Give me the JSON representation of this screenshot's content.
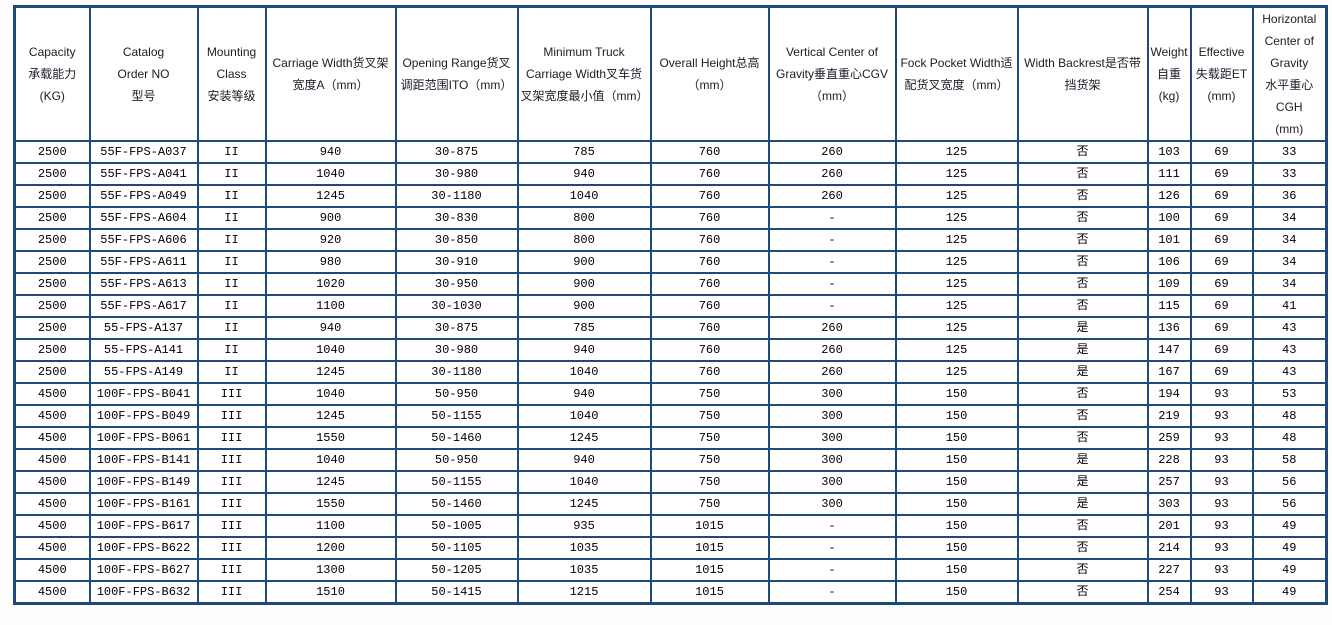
{
  "colors": {
    "grid_border": "#1F497D",
    "header_text": "#1c1c28",
    "cell_text": "#000000",
    "background": "#ffffff"
  },
  "table": {
    "headers": [
      "Capacity\n承载能力\n(KG)",
      "Catalog\nOrder NO\n型号",
      "Mounting\nClass\n安装等级",
      "Carriage Width货叉架宽度A（mm）",
      "Opening Range货叉调距范围ITO（mm）",
      "Minimum Truck Carriage Width叉车货叉架宽度最小值（mm）",
      "Overall Height总高\n（mm）",
      "Vertical Center of\nGravity垂直重心CGV\n（mm）",
      "Fock Pocket Width适配货叉宽度（mm）",
      "Width Backrest是否带挡货架",
      "Weight\n自重\n(kg)",
      "Effective\n失载距ET\n(mm)",
      "Horizontal\nCenter of\nGravity\n水平重心CGH\n(mm)"
    ],
    "rows": [
      [
        "2500",
        "55F-FPS-A037",
        "II",
        "940",
        "30-875",
        "785",
        "760",
        "260",
        "125",
        "否",
        "103",
        "69",
        "33"
      ],
      [
        "2500",
        "55F-FPS-A041",
        "II",
        "1040",
        "30-980",
        "940",
        "760",
        "260",
        "125",
        "否",
        "111",
        "69",
        "33"
      ],
      [
        "2500",
        "55F-FPS-A049",
        "II",
        "1245",
        "30-1180",
        "1040",
        "760",
        "260",
        "125",
        "否",
        "126",
        "69",
        "36"
      ],
      [
        "2500",
        "55F-FPS-A604",
        "II",
        "900",
        "30-830",
        "800",
        "760",
        "-",
        "125",
        "否",
        "100",
        "69",
        "34"
      ],
      [
        "2500",
        "55F-FPS-A606",
        "II",
        "920",
        "30-850",
        "800",
        "760",
        "-",
        "125",
        "否",
        "101",
        "69",
        "34"
      ],
      [
        "2500",
        "55F-FPS-A611",
        "II",
        "980",
        "30-910",
        "900",
        "760",
        "-",
        "125",
        "否",
        "106",
        "69",
        "34"
      ],
      [
        "2500",
        "55F-FPS-A613",
        "II",
        "1020",
        "30-950",
        "900",
        "760",
        "-",
        "125",
        "否",
        "109",
        "69",
        "34"
      ],
      [
        "2500",
        "55F-FPS-A617",
        "II",
        "1100",
        "30-1030",
        "900",
        "760",
        "-",
        "125",
        "否",
        "115",
        "69",
        "41"
      ],
      [
        "2500",
        "55-FPS-A137",
        "II",
        "940",
        "30-875",
        "785",
        "760",
        "260",
        "125",
        "是",
        "136",
        "69",
        "43"
      ],
      [
        "2500",
        "55-FPS-A141",
        "II",
        "1040",
        "30-980",
        "940",
        "760",
        "260",
        "125",
        "是",
        "147",
        "69",
        "43"
      ],
      [
        "2500",
        "55-FPS-A149",
        "II",
        "1245",
        "30-1180",
        "1040",
        "760",
        "260",
        "125",
        "是",
        "167",
        "69",
        "43"
      ],
      [
        "4500",
        "100F-FPS-B041",
        "III",
        "1040",
        "50-950",
        "940",
        "750",
        "300",
        "150",
        "否",
        "194",
        "93",
        "53"
      ],
      [
        "4500",
        "100F-FPS-B049",
        "III",
        "1245",
        "50-1155",
        "1040",
        "750",
        "300",
        "150",
        "否",
        "219",
        "93",
        "48"
      ],
      [
        "4500",
        "100F-FPS-B061",
        "III",
        "1550",
        "50-1460",
        "1245",
        "750",
        "300",
        "150",
        "否",
        "259",
        "93",
        "48"
      ],
      [
        "4500",
        "100F-FPS-B141",
        "III",
        "1040",
        "50-950",
        "940",
        "750",
        "300",
        "150",
        "是",
        "228",
        "93",
        "58"
      ],
      [
        "4500",
        "100F-FPS-B149",
        "III",
        "1245",
        "50-1155",
        "1040",
        "750",
        "300",
        "150",
        "是",
        "257",
        "93",
        "56"
      ],
      [
        "4500",
        "100F-FPS-B161",
        "III",
        "1550",
        "50-1460",
        "1245",
        "750",
        "300",
        "150",
        "是",
        "303",
        "93",
        "56"
      ],
      [
        "4500",
        "100F-FPS-B617",
        "III",
        "1100",
        "50-1005",
        "935",
        "1015",
        "-",
        "150",
        "否",
        "201",
        "93",
        "49"
      ],
      [
        "4500",
        "100F-FPS-B622",
        "III",
        "1200",
        "50-1105",
        "1035",
        "1015",
        "-",
        "150",
        "否",
        "214",
        "93",
        "49"
      ],
      [
        "4500",
        "100F-FPS-B627",
        "III",
        "1300",
        "50-1205",
        "1035",
        "1015",
        "-",
        "150",
        "否",
        "227",
        "93",
        "49"
      ],
      [
        "4500",
        "100F-FPS-B632",
        "III",
        "1510",
        "50-1415",
        "1215",
        "1015",
        "-",
        "150",
        "否",
        "254",
        "93",
        "49"
      ]
    ]
  }
}
